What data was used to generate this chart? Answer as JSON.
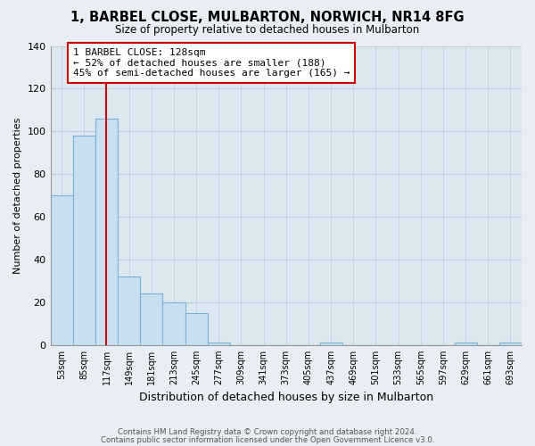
{
  "title": "1, BARBEL CLOSE, MULBARTON, NORWICH, NR14 8FG",
  "subtitle": "Size of property relative to detached houses in Mulbarton",
  "xlabel": "Distribution of detached houses by size in Mulbarton",
  "ylabel": "Number of detached properties",
  "bar_labels": [
    "53sqm",
    "85sqm",
    "117sqm",
    "149sqm",
    "181sqm",
    "213sqm",
    "245sqm",
    "277sqm",
    "309sqm",
    "341sqm",
    "373sqm",
    "405sqm",
    "437sqm",
    "469sqm",
    "501sqm",
    "533sqm",
    "565sqm",
    "597sqm",
    "629sqm",
    "661sqm",
    "693sqm"
  ],
  "bar_values": [
    70,
    98,
    106,
    32,
    24,
    20,
    15,
    1,
    0,
    0,
    0,
    0,
    1,
    0,
    0,
    0,
    0,
    0,
    1,
    0,
    1
  ],
  "bar_color": "#c8dff0",
  "bar_edge_color": "#7ab0d4",
  "property_line_color": "#cc0000",
  "annotation_text": "1 BARBEL CLOSE: 128sqm\n← 52% of detached houses are smaller (188)\n45% of semi-detached houses are larger (165) →",
  "annotation_box_color": "#ffffff",
  "annotation_box_edge_color": "#cc0000",
  "ylim": [
    0,
    140
  ],
  "yticks": [
    0,
    20,
    40,
    60,
    80,
    100,
    120,
    140
  ],
  "footer1": "Contains HM Land Registry data © Crown copyright and database right 2024.",
  "footer2": "Contains public sector information licensed under the Open Government Licence v3.0.",
  "bg_color": "#e8eef4",
  "plot_bg_color": "#dce8f0",
  "grid_color": "#b8cdd8"
}
